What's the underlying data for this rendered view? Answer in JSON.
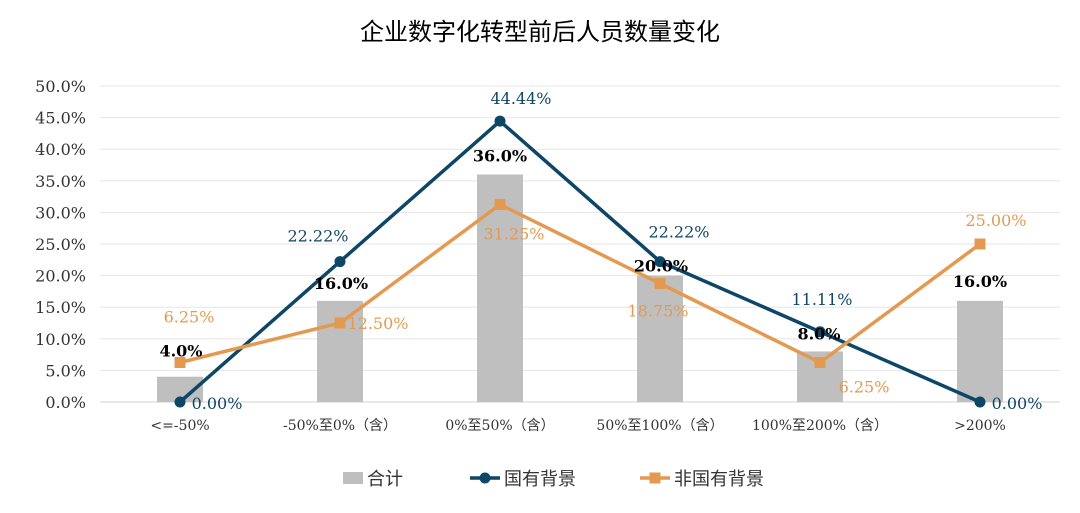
{
  "chart_data": {
    "type": "bar+line",
    "title": "企业数字化转型前后人员数量变化",
    "categories": [
      "<=-50%",
      "-50%至0%（含）",
      "0%至50%（含）",
      "50%至100%（含）",
      "100%至200%（含）",
      ">200%"
    ],
    "ylim": [
      0,
      50
    ],
    "yticks": [
      "0.0%",
      "5.0%",
      "10.0%",
      "15.0%",
      "20.0%",
      "25.0%",
      "30.0%",
      "35.0%",
      "40.0%",
      "45.0%",
      "50.0%"
    ],
    "grid": true,
    "legend_placement": "bottom",
    "series": [
      {
        "name": "合计",
        "type": "bar",
        "color": "#bfbfbf",
        "values": [
          4.0,
          16.0,
          36.0,
          20.0,
          8.0,
          16.0
        ],
        "labels": [
          "4.0%",
          "16.0%",
          "36.0%",
          "20.0%",
          "8.0%",
          "16.0%"
        ],
        "label_color": "#000000"
      },
      {
        "name": "国有背景",
        "type": "line",
        "marker": "circle",
        "color": "#0e4666",
        "values": [
          0.0,
          22.22,
          44.44,
          22.22,
          11.11,
          0.0
        ],
        "labels": [
          "0.00%",
          "22.22%",
          "44.44%",
          "22.22%",
          "11.11%",
          "0.00%"
        ],
        "label_color": "#0e4666"
      },
      {
        "name": "非国有背景",
        "type": "line",
        "marker": "square",
        "color": "#e39a50",
        "values": [
          6.25,
          12.5,
          31.25,
          18.75,
          6.25,
          25.0
        ],
        "labels": [
          "6.25%",
          "12.50%",
          "31.25%",
          "18.75%",
          "6.25%",
          "25.00%"
        ],
        "label_color": "#e39a50"
      }
    ]
  }
}
